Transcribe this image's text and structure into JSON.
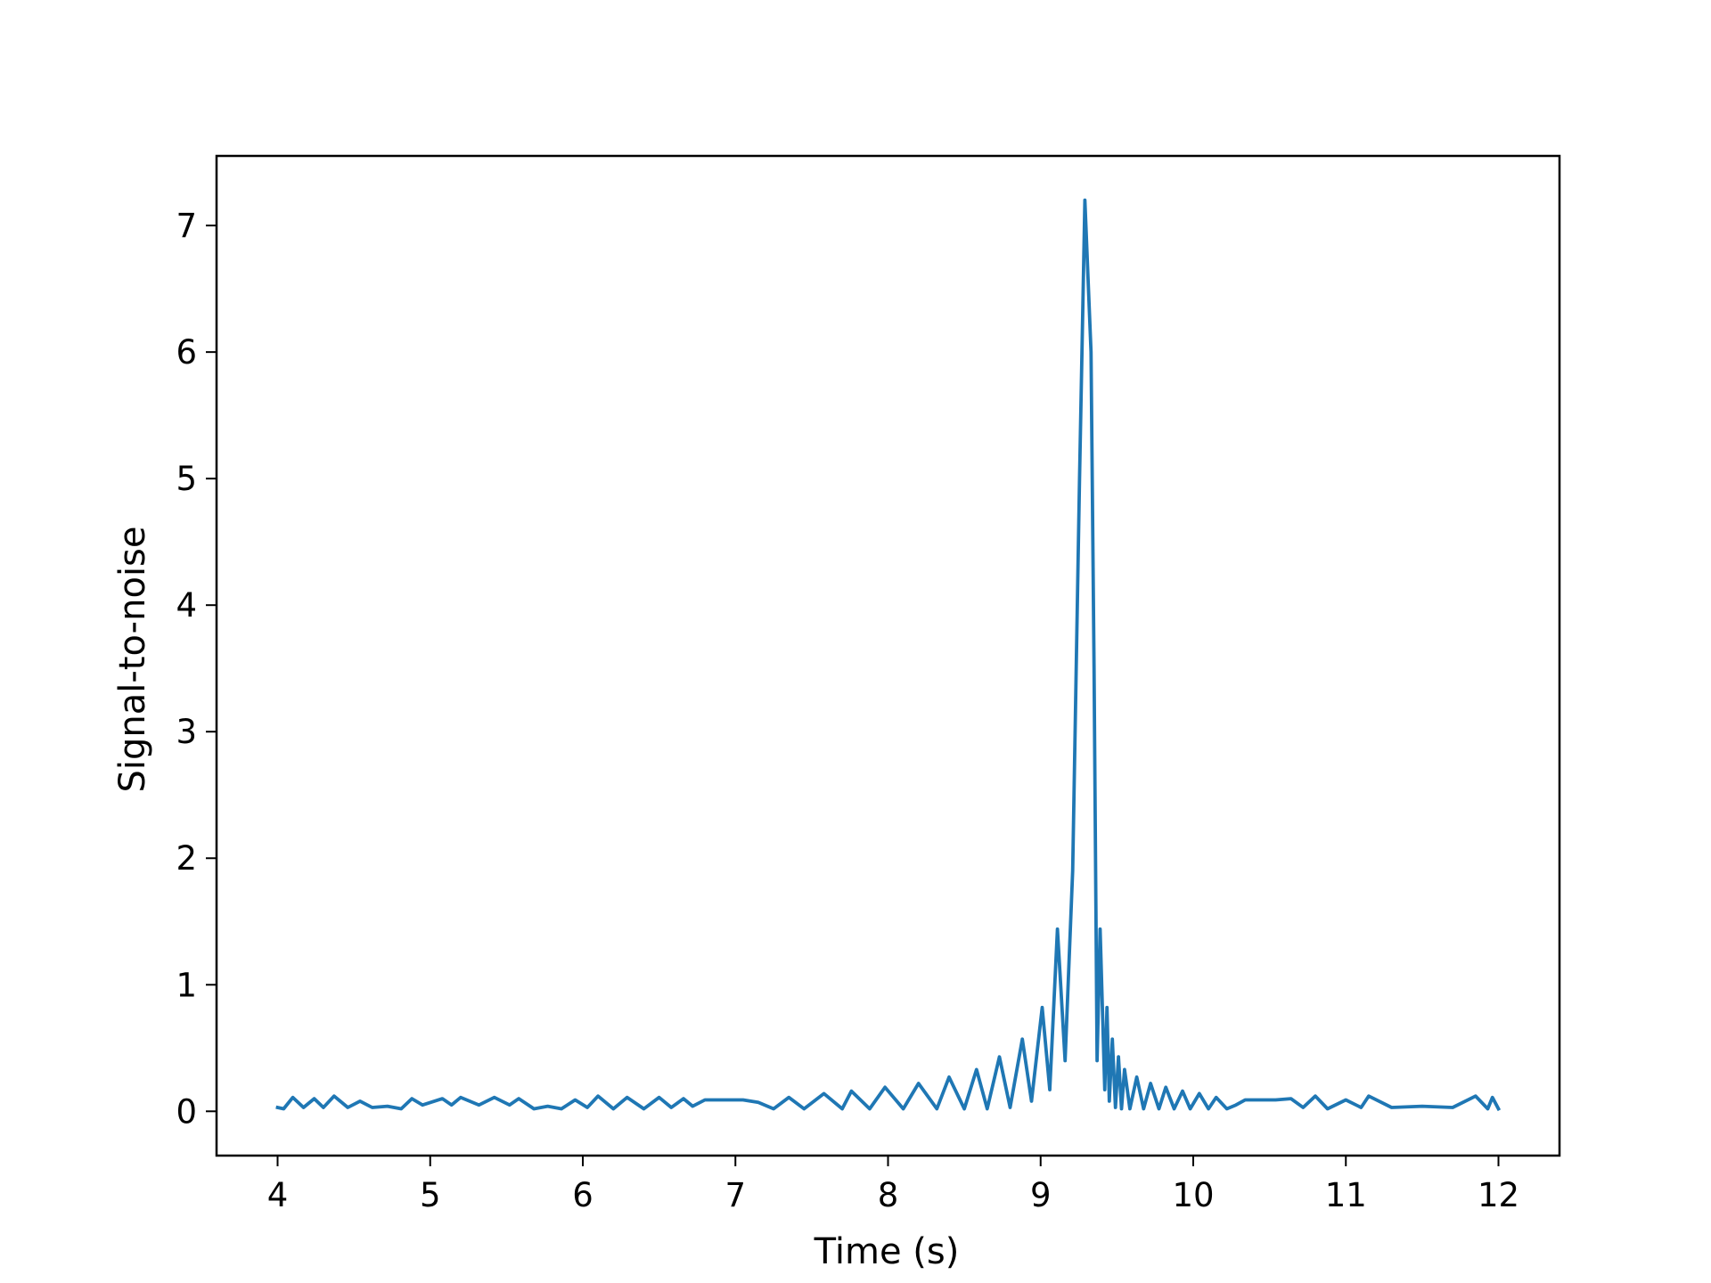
{
  "chart_data": {
    "type": "line",
    "title": "",
    "xlabel": "Time (s)",
    "ylabel": "Signal-to-noise",
    "xlim": [
      3.6,
      12.4
    ],
    "ylim": [
      -0.35,
      7.55
    ],
    "xticks": [
      4,
      5,
      6,
      7,
      8,
      9,
      10,
      11,
      12
    ],
    "xtick_labels": [
      "4",
      "5",
      "6",
      "7",
      "8",
      "9",
      "10",
      "11",
      "12"
    ],
    "yticks": [
      0,
      1,
      2,
      3,
      4,
      5,
      6,
      7
    ],
    "ytick_labels": [
      "0",
      "1",
      "2",
      "3",
      "4",
      "5",
      "6",
      "7"
    ],
    "grid": false,
    "legend": "none",
    "series": [
      {
        "color": "#1f77b4",
        "x": [
          4.0,
          4.04,
          4.1,
          4.17,
          4.24,
          4.3,
          4.37,
          4.46,
          4.54,
          4.62,
          4.72,
          4.81,
          4.88,
          4.95,
          5.08,
          5.14,
          5.2,
          5.32,
          5.42,
          5.52,
          5.58,
          5.68,
          5.77,
          5.86,
          5.95,
          6.03,
          6.1,
          6.2,
          6.29,
          6.4,
          6.5,
          6.58,
          6.66,
          6.72,
          6.8,
          6.88,
          6.93,
          6.94,
          7.05,
          7.15,
          7.25,
          7.35,
          7.45,
          7.58,
          7.7,
          7.76,
          7.88,
          7.98,
          8.1,
          8.2,
          8.32,
          8.4,
          8.5,
          8.58,
          8.65,
          8.73,
          8.8,
          8.88,
          8.94,
          9.01,
          9.06,
          9.11,
          9.16,
          9.21,
          9.255,
          9.29,
          9.33,
          9.35,
          9.37,
          9.39,
          9.42,
          9.435,
          9.45,
          9.47,
          9.49,
          9.51,
          9.53,
          9.55,
          9.585,
          9.63,
          9.675,
          9.72,
          9.775,
          9.82,
          9.875,
          9.93,
          9.98,
          10.04,
          10.1,
          10.15,
          10.22,
          10.28,
          10.34,
          10.4,
          10.48,
          10.54,
          10.64,
          10.72,
          10.8,
          10.88,
          11.0,
          11.1,
          11.15,
          11.3,
          11.5,
          11.7,
          11.85,
          11.93,
          11.96,
          12.0
        ],
        "y": [
          0.03,
          0.02,
          0.11,
          0.03,
          0.1,
          0.03,
          0.12,
          0.03,
          0.08,
          0.03,
          0.04,
          0.02,
          0.1,
          0.05,
          0.1,
          0.05,
          0.11,
          0.05,
          0.11,
          0.05,
          0.1,
          0.02,
          0.04,
          0.02,
          0.09,
          0.03,
          0.12,
          0.02,
          0.11,
          0.02,
          0.11,
          0.03,
          0.1,
          0.04,
          0.09,
          0.09,
          0.09,
          0.09,
          0.09,
          0.07,
          0.02,
          0.11,
          0.02,
          0.14,
          0.02,
          0.16,
          0.02,
          0.19,
          0.02,
          0.22,
          0.02,
          0.27,
          0.02,
          0.33,
          0.02,
          0.43,
          0.03,
          0.57,
          0.08,
          0.82,
          0.17,
          1.44,
          0.4,
          1.9,
          5.0,
          7.2,
          6.0,
          3.5,
          0.4,
          1.44,
          0.17,
          0.82,
          0.08,
          0.57,
          0.03,
          0.43,
          0.02,
          0.33,
          0.02,
          0.27,
          0.02,
          0.22,
          0.02,
          0.19,
          0.02,
          0.16,
          0.02,
          0.14,
          0.02,
          0.11,
          0.02,
          0.05,
          0.09,
          0.09,
          0.09,
          0.09,
          0.1,
          0.03,
          0.12,
          0.02,
          0.09,
          0.03,
          0.12,
          0.03,
          0.04,
          0.03,
          0.12,
          0.02,
          0.11,
          0.02
        ]
      }
    ]
  }
}
